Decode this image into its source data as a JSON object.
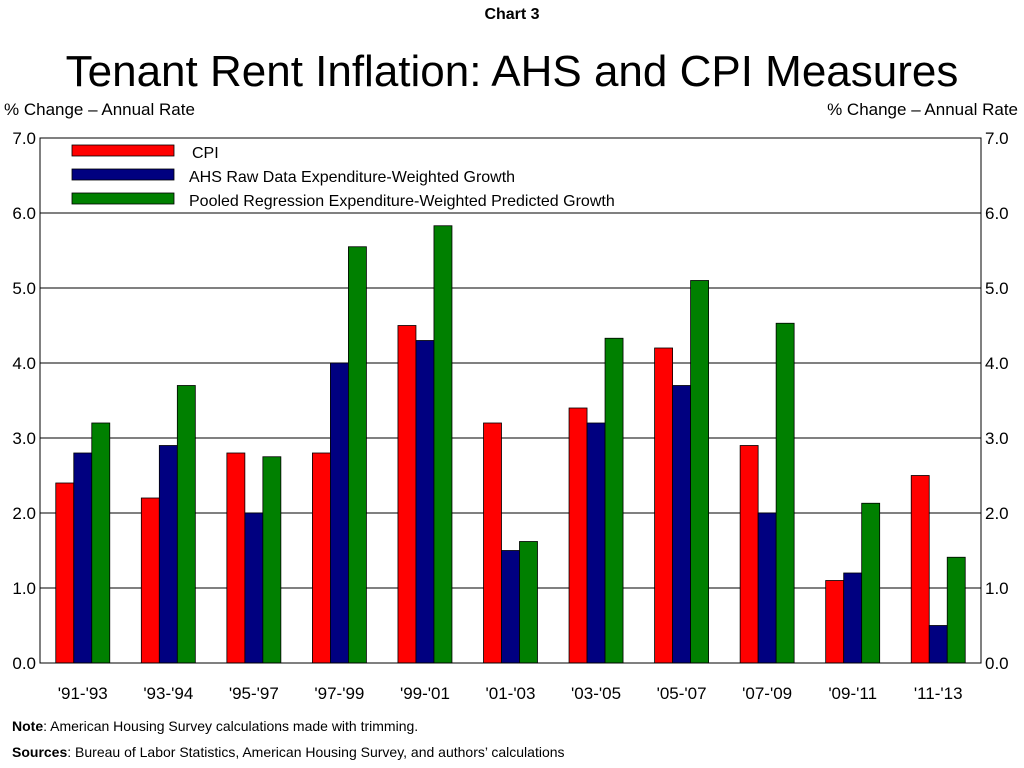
{
  "header": {
    "chart_label": "Chart 3",
    "title": "Tenant Rent Inflation: AHS and CPI Measures",
    "left_axis_unit": "% Change – Annual Rate",
    "right_axis_unit": "% Change – Annual Rate"
  },
  "footer": {
    "note_label": "Note",
    "note_text": ": American Housing Survey calculations made with trimming.",
    "sources_label": "Sources",
    "sources_text": ": Bureau of Labor Statistics, American Housing Survey, and authors’ calculations"
  },
  "chart_data": {
    "type": "bar",
    "title": "Tenant Rent Inflation: AHS and CPI Measures",
    "ylabel": "% Change – Annual Rate",
    "y2label": "% Change – Annual Rate",
    "ylim": [
      0,
      7
    ],
    "yticks": [
      "0.0",
      "1.0",
      "2.0",
      "3.0",
      "4.0",
      "5.0",
      "6.0",
      "7.0"
    ],
    "grid": "horizontal",
    "legend_position": "top-left",
    "categories": [
      "'91-'93",
      "'93-'94",
      "'95-'97",
      "'97-'99",
      "'99-'01",
      "'01-'03",
      "'03-'05",
      "'05-'07",
      "'07-'09",
      "'09-'11",
      "'11-'13"
    ],
    "series": [
      {
        "name": "CPI",
        "color": "#ff0000",
        "values": [
          2.4,
          2.2,
          2.8,
          2.8,
          4.5,
          3.2,
          3.4,
          4.2,
          2.9,
          1.1,
          2.5
        ]
      },
      {
        "name": "AHS Raw Data Expenditure-Weighted Growth",
        "color": "#000080",
        "values": [
          2.8,
          2.9,
          2.0,
          4.0,
          4.3,
          1.5,
          3.2,
          3.7,
          2.0,
          1.2,
          0.5
        ]
      },
      {
        "name": "Pooled Regression Expenditure-Weighted Predicted Growth",
        "color": "#008000",
        "values": [
          3.2,
          3.7,
          2.75,
          5.55,
          5.83,
          1.62,
          4.33,
          5.1,
          4.53,
          2.13,
          1.41
        ]
      }
    ]
  }
}
